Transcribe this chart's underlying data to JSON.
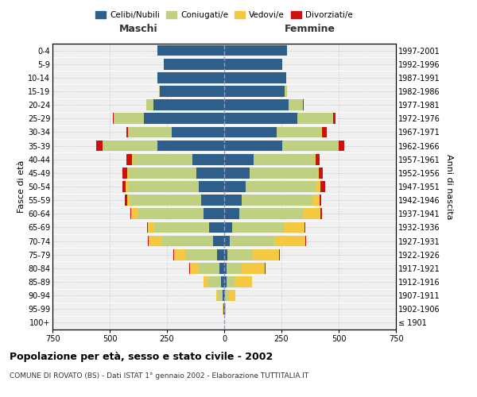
{
  "age_groups": [
    "100+",
    "95-99",
    "90-94",
    "85-89",
    "80-84",
    "75-79",
    "70-74",
    "65-69",
    "60-64",
    "55-59",
    "50-54",
    "45-49",
    "40-44",
    "35-39",
    "30-34",
    "25-29",
    "20-24",
    "15-19",
    "10-14",
    "5-9",
    "0-4"
  ],
  "birth_years": [
    "≤ 1901",
    "1902-1906",
    "1907-1911",
    "1912-1916",
    "1917-1921",
    "1922-1926",
    "1927-1931",
    "1932-1936",
    "1937-1941",
    "1942-1946",
    "1947-1951",
    "1952-1956",
    "1957-1961",
    "1962-1966",
    "1967-1971",
    "1972-1976",
    "1977-1981",
    "1982-1986",
    "1987-1991",
    "1992-1996",
    "1997-2001"
  ],
  "males": {
    "celibi": [
      0,
      2,
      8,
      15,
      20,
      30,
      50,
      65,
      90,
      100,
      110,
      120,
      140,
      290,
      230,
      350,
      310,
      280,
      290,
      265,
      290
    ],
    "coniugati": [
      0,
      3,
      20,
      55,
      90,
      140,
      220,
      240,
      290,
      310,
      310,
      300,
      260,
      240,
      190,
      130,
      30,
      5,
      2,
      0,
      0
    ],
    "vedovi": [
      0,
      1,
      5,
      20,
      40,
      50,
      60,
      30,
      25,
      15,
      10,
      5,
      3,
      0,
      0,
      2,
      0,
      0,
      0,
      0,
      0
    ],
    "divorziati": [
      0,
      0,
      0,
      1,
      2,
      2,
      2,
      3,
      5,
      10,
      15,
      20,
      25,
      30,
      8,
      5,
      2,
      0,
      0,
      0,
      0
    ]
  },
  "females": {
    "nubili": [
      0,
      3,
      5,
      10,
      12,
      15,
      25,
      35,
      65,
      75,
      95,
      110,
      130,
      255,
      230,
      320,
      280,
      265,
      270,
      255,
      275
    ],
    "coniugate": [
      0,
      2,
      15,
      35,
      65,
      110,
      195,
      225,
      280,
      310,
      305,
      295,
      265,
      245,
      195,
      155,
      65,
      10,
      2,
      0,
      0
    ],
    "vedove": [
      0,
      3,
      30,
      75,
      100,
      115,
      135,
      90,
      75,
      30,
      20,
      8,
      5,
      0,
      2,
      2,
      0,
      0,
      0,
      0,
      0
    ],
    "divorziate": [
      0,
      0,
      0,
      2,
      2,
      2,
      3,
      3,
      8,
      10,
      20,
      18,
      15,
      25,
      20,
      10,
      3,
      0,
      0,
      0,
      0
    ]
  },
  "colors": {
    "celibi": "#2E5F8A",
    "coniugati": "#BFD080",
    "vedovi": "#F5C842",
    "divorziati": "#CC1010"
  },
  "xlim": 750,
  "title": "Popolazione per età, sesso e stato civile - 2002",
  "subtitle": "COMUNE DI ROVATO (BS) - Dati ISTAT 1° gennaio 2002 - Elaborazione TUTTITALIA.IT",
  "xlabel_left": "Maschi",
  "xlabel_right": "Femmine",
  "ylabel_left": "Fasce di età",
  "ylabel_right": "Anni di nascita",
  "bg_color": "#f0f0f0",
  "grid_color": "#cccccc"
}
